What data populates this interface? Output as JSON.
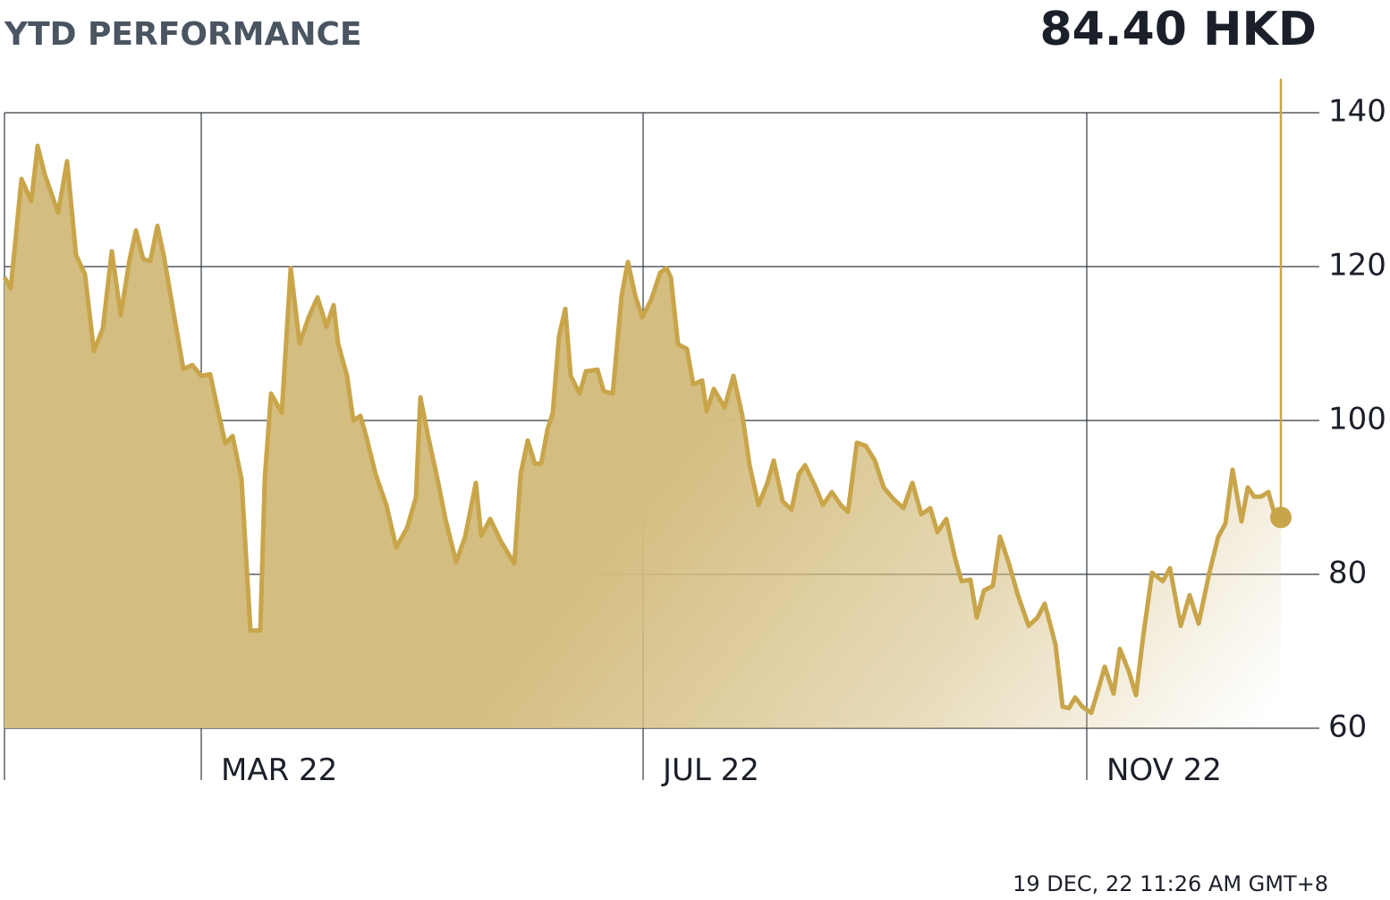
{
  "chart_data": {
    "type": "line",
    "title": "YTD PERFORMANCE",
    "price_label": "84.40 HKD",
    "timestamp": "19 DEC, 22 11:26 AM GMT+8",
    "color": "#c9a54a",
    "fill_color": "#d4bd80",
    "grid": true,
    "xlim": [
      0,
      147
    ],
    "xticks": [
      {
        "value": 22,
        "label": "MAR 22"
      },
      {
        "value": 71.4,
        "label": "JUL 22"
      },
      {
        "value": 121,
        "label": "NOV 22"
      }
    ],
    "ylim": [
      60,
      140
    ],
    "yticks": [
      60,
      80,
      100,
      120,
      140
    ],
    "x": [
      0,
      0.7,
      1.9,
      3,
      3.7,
      4.5,
      6,
      7,
      8,
      9,
      10,
      11,
      12,
      13,
      14,
      14.7,
      15.5,
      16.3,
      17.1,
      17.8,
      19,
      20,
      21,
      22,
      23,
      24,
      24.7,
      25.5,
      26.5,
      27.5,
      28.6,
      29.1,
      29.8,
      31,
      32,
      33,
      34,
      35,
      36,
      36.8,
      37.3,
      38.3,
      39,
      39.8,
      40.5,
      41.5,
      42.7,
      43.8,
      45,
      46,
      46.5,
      47.3,
      48.5,
      49.3,
      50.5,
      51.5,
      52.7,
      53.3,
      54.3,
      55.5,
      57,
      57.7,
      58.5,
      59.3,
      60,
      60.7,
      61.3,
      62,
      62.7,
      63.3,
      64.3,
      65,
      66.3,
      67,
      68,
      69,
      69.7,
      70.5,
      71.3,
      72.3,
      73.3,
      74,
      74.5,
      75.3,
      76.3,
      77,
      78,
      78.5,
      79.3,
      80.5,
      81.5,
      82.5,
      83.3,
      84.3,
      85.3,
      86,
      87,
      88,
      88.8,
      89.5,
      90.7,
      91.5,
      92.5,
      93.5,
      94.3,
      95.3,
      96.3,
      97.3,
      98.3,
      99.3,
      100.5,
      101.5,
      102.5,
      103.5,
      104.3,
      105.3,
      106.3,
      107,
      108,
      108.7,
      109.5,
      110.5,
      111.3,
      112.3,
      113.3,
      114.5,
      115.5,
      116.3,
      117.5,
      118.3,
      119,
      119.7,
      120.5,
      121.5,
      122.3,
      123,
      124,
      124.7,
      125.7,
      126.5,
      127.3,
      128.3,
      129.5,
      130.3,
      131.5,
      132.5,
      133.5,
      134.7,
      135.7,
      136.5,
      137.3,
      138.3,
      139,
      139.7,
      140.5,
      141.3,
      142,
      142.7
    ],
    "values": [
      118.6,
      117.2,
      131.4,
      128.5,
      135.7,
      132,
      127,
      133.7,
      121.5,
      119,
      109,
      112,
      122,
      113.7,
      121,
      124.7,
      121,
      120.7,
      125.3,
      121.5,
      113.4,
      106.7,
      107.2,
      105.8,
      106,
      100.6,
      97,
      98,
      92.4,
      72.7,
      72.7,
      92.4,
      103.5,
      101,
      119.8,
      110,
      113.4,
      116,
      112.2,
      115,
      110,
      105.8,
      100,
      100.6,
      97.7,
      93,
      89,
      83.5,
      86,
      90,
      103,
      98.3,
      91.9,
      87.2,
      81.6,
      84.9,
      91.9,
      85,
      87.2,
      84.3,
      81.4,
      93,
      97.4,
      94.4,
      94.4,
      98.8,
      101,
      111,
      114.5,
      105.8,
      103.5,
      106.4,
      106.6,
      103.8,
      103.5,
      116.3,
      120.6,
      116.3,
      113.4,
      115.7,
      119.2,
      119.8,
      118.6,
      109.9,
      109.3,
      104.7,
      105.2,
      101.2,
      104.1,
      101.7,
      105.8,
      100.6,
      94.2,
      89,
      91.9,
      94.8,
      89.5,
      88.4,
      93,
      94.2,
      91.3,
      89,
      90.7,
      89,
      88.1,
      97.1,
      96.7,
      94.8,
      91.3,
      89.9,
      88.6,
      91.9,
      87.8,
      88.6,
      85.5,
      87.2,
      82,
      79.1,
      79.3,
      74.4,
      77.9,
      78.5,
      84.9,
      81.4,
      77.3,
      73.3,
      74.4,
      76.2,
      70.9,
      62.8,
      62.6,
      64,
      62.8,
      62,
      65.1,
      68,
      64.5,
      70.3,
      67.4,
      64.3,
      71.9,
      80.2,
      79.1,
      80.8,
      73.3,
      77.3,
      73.6,
      80.2,
      84.9,
      86.6,
      93.6,
      86.9,
      91.3,
      90.1,
      90.1,
      90.7,
      87.8,
      87.4
    ]
  }
}
